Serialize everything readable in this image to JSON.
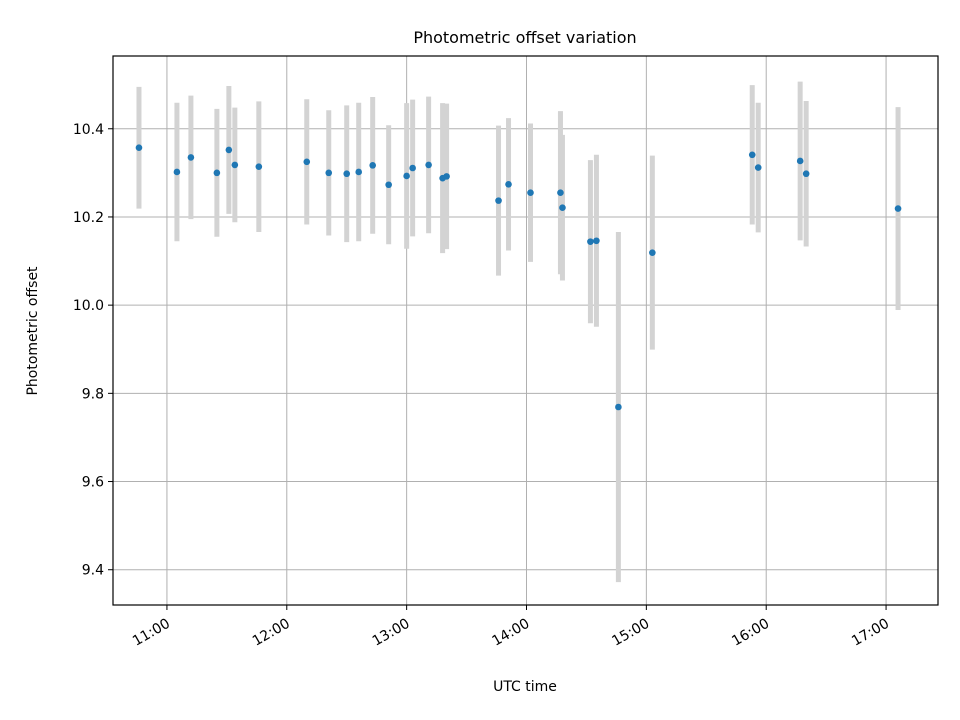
{
  "chart_data": {
    "type": "scatter",
    "title": "Photometric offset variation",
    "xlabel": "UTC time",
    "ylabel": "Photometric offset",
    "x_ticks": [
      "11:00",
      "12:00",
      "13:00",
      "14:00",
      "15:00",
      "16:00",
      "17:00"
    ],
    "y_ticks": [
      "9.4",
      "9.6",
      "9.8",
      "10.0",
      "10.2",
      "10.4"
    ],
    "xlim": [
      "10:33",
      "17:26"
    ],
    "ylim": [
      9.32,
      10.565
    ],
    "grid": true,
    "legend": "none",
    "colors": {
      "marker": "#1f77b4",
      "errorbar": "#d3d3d3",
      "grid": "#b0b0b0"
    },
    "series": [
      {
        "points": [
          {
            "x": "10:46",
            "y": 10.357,
            "err": 0.138
          },
          {
            "x": "11:05",
            "y": 10.302,
            "err": 0.157
          },
          {
            "x": "11:12",
            "y": 10.335,
            "err": 0.14
          },
          {
            "x": "11:25",
            "y": 10.3,
            "err": 0.145
          },
          {
            "x": "11:31",
            "y": 10.352,
            "err": 0.145
          },
          {
            "x": "11:34",
            "y": 10.318,
            "err": 0.13
          },
          {
            "x": "11:46",
            "y": 10.314,
            "err": 0.148
          },
          {
            "x": "12:10",
            "y": 10.325,
            "err": 0.142
          },
          {
            "x": "12:21",
            "y": 10.3,
            "err": 0.142
          },
          {
            "x": "12:30",
            "y": 10.298,
            "err": 0.155
          },
          {
            "x": "12:36",
            "y": 10.302,
            "err": 0.157
          },
          {
            "x": "12:43",
            "y": 10.317,
            "err": 0.155
          },
          {
            "x": "12:51",
            "y": 10.273,
            "err": 0.135
          },
          {
            "x": "13:00",
            "y": 10.293,
            "err": 0.165
          },
          {
            "x": "13:03",
            "y": 10.311,
            "err": 0.155
          },
          {
            "x": "13:11",
            "y": 10.318,
            "err": 0.155
          },
          {
            "x": "13:18",
            "y": 10.288,
            "err": 0.17
          },
          {
            "x": "13:20",
            "y": 10.292,
            "err": 0.165
          },
          {
            "x": "13:46",
            "y": 10.237,
            "err": 0.17
          },
          {
            "x": "13:51",
            "y": 10.274,
            "err": 0.15
          },
          {
            "x": "14:02",
            "y": 10.255,
            "err": 0.157
          },
          {
            "x": "14:17",
            "y": 10.255,
            "err": 0.185
          },
          {
            "x": "14:18",
            "y": 10.221,
            "err": 0.165
          },
          {
            "x": "14:32",
            "y": 10.144,
            "err": 0.185
          },
          {
            "x": "14:35",
            "y": 10.146,
            "err": 0.195
          },
          {
            "x": "14:46",
            "y": 9.769,
            "err": 0.397
          },
          {
            "x": "15:03",
            "y": 10.119,
            "err": 0.22
          },
          {
            "x": "15:53",
            "y": 10.341,
            "err": 0.158
          },
          {
            "x": "15:56",
            "y": 10.312,
            "err": 0.147
          },
          {
            "x": "16:17",
            "y": 10.327,
            "err": 0.18
          },
          {
            "x": "16:20",
            "y": 10.298,
            "err": 0.165
          },
          {
            "x": "17:06",
            "y": 10.219,
            "err": 0.23
          }
        ]
      }
    ]
  }
}
